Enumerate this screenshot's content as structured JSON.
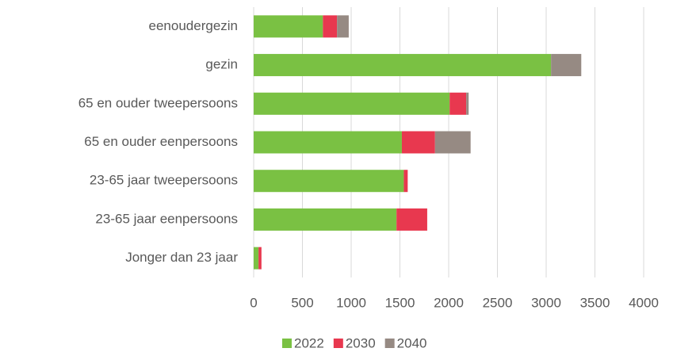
{
  "chart_data": {
    "type": "stacked-barh",
    "categories": [
      "eenoudergezin",
      "gezin",
      "65 en ouder tweepersoons",
      "65 en ouder eenpersoons",
      "23-65 jaar tweepersoons",
      "23-65 jaar eenpersoons",
      "Jonger dan 23 jaar"
    ],
    "series": [
      {
        "name": "2022",
        "color": "#7ac143",
        "values": [
          710,
          3050,
          2010,
          1520,
          1540,
          1465,
          50
        ]
      },
      {
        "name": "2030",
        "color": "#e8384f",
        "values": [
          145,
          0,
          170,
          340,
          40,
          315,
          30
        ]
      },
      {
        "name": "2040",
        "color": "#968a83",
        "values": [
          120,
          310,
          25,
          365,
          0,
          0,
          0
        ]
      }
    ],
    "xlim": [
      0,
      4000
    ],
    "xticks": [
      0,
      500,
      1000,
      1500,
      2000,
      2500,
      3000,
      3500,
      4000
    ],
    "grid": true,
    "legend": "bottom"
  }
}
